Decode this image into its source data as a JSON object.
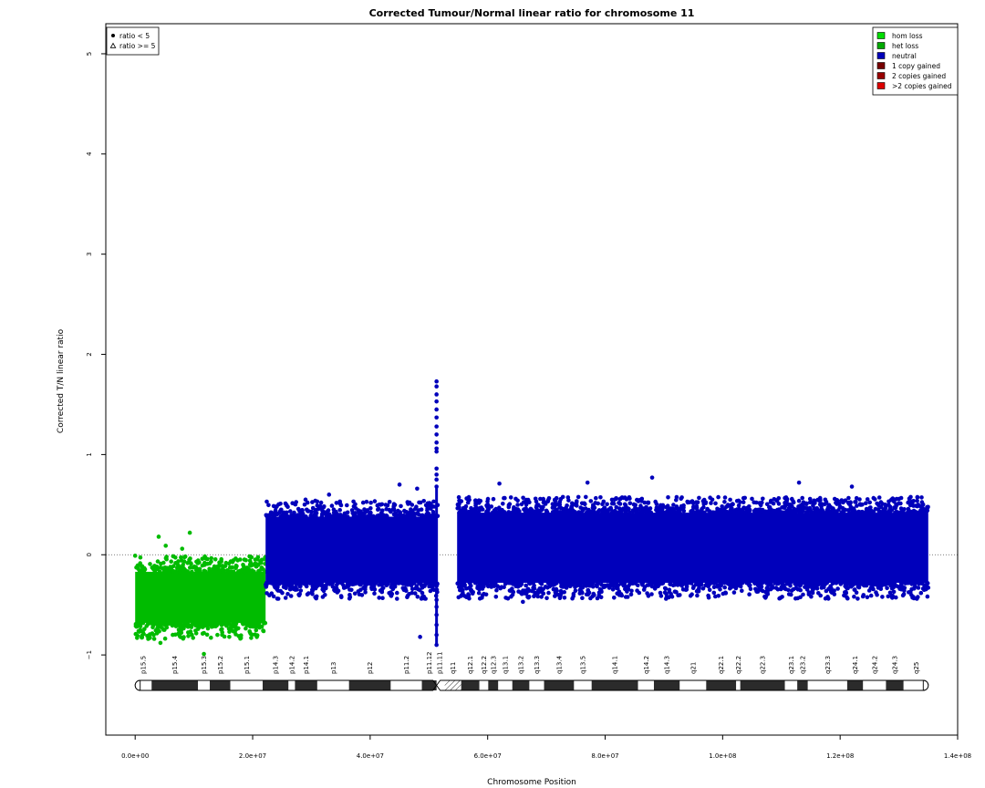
{
  "chart_data": {
    "type": "scatter",
    "title": "Corrected Tumour/Normal linear ratio for chromosome  11",
    "xlabel": "Chromosome Position",
    "ylabel": "Corrected T/N linear ratio",
    "xlim": [
      -5000000,
      140000000
    ],
    "ylim": [
      -1.8,
      5.3
    ],
    "x_ticks": [
      0,
      20000000,
      40000000,
      60000000,
      80000000,
      100000000,
      120000000,
      140000000
    ],
    "x_tick_labels": [
      "0.0e+00",
      "2.0e+07",
      "4.0e+07",
      "6.0e+07",
      "8.0e+07",
      "1.0e+08",
      "1.2e+08",
      "1.4e+08"
    ],
    "y_ticks": [
      -1,
      0,
      1,
      2,
      3,
      4,
      5
    ],
    "y_tick_labels": [
      "−1",
      "0",
      "1",
      "2",
      "3",
      "4",
      "5"
    ],
    "reference_line_y": 0,
    "grid": false,
    "segments": [
      {
        "state": "het loss",
        "color": "#00BB00",
        "x_start": 0,
        "x_end": 22200000,
        "mean": -0.47,
        "band_low": -0.68,
        "band_high": -0.17
      },
      {
        "state": "neutral",
        "color": "#0000BB",
        "x_start": 22200000,
        "x_end": 51500000,
        "mean": 0.05,
        "band_low": -0.28,
        "band_high": 0.38
      },
      {
        "state": "neutral",
        "color": "#0000BB",
        "x_start": 54800000,
        "x_end": 135000000,
        "mean": 0.05,
        "band_low": -0.28,
        "band_high": 0.42
      }
    ],
    "centromere_spike": {
      "x": 51300000,
      "y_values": [
        1.73,
        1.68,
        1.6,
        1.53,
        1.45,
        1.37,
        1.28,
        1.2,
        1.12,
        1.06,
        1.03,
        0.86,
        0.8,
        0.75,
        0.68,
        -0.45,
        -0.52,
        -0.6,
        -0.7,
        -0.8,
        -0.9
      ]
    },
    "outliers": [
      {
        "x": 0,
        "y": -0.01,
        "state": "het loss"
      },
      {
        "x": 4000000,
        "y": 0.18,
        "state": "het loss"
      },
      {
        "x": 5200000,
        "y": 0.09,
        "state": "het loss"
      },
      {
        "x": 6000000,
        "y": -0.2,
        "state": "het loss"
      },
      {
        "x": 8000000,
        "y": 0.06,
        "state": "het loss"
      },
      {
        "x": 9300000,
        "y": 0.22,
        "state": "het loss"
      },
      {
        "x": 4300000,
        "y": -0.88,
        "state": "het loss"
      },
      {
        "x": 11700000,
        "y": -0.99,
        "state": "het loss"
      },
      {
        "x": 14000000,
        "y": -0.8,
        "state": "het loss"
      },
      {
        "x": 29000000,
        "y": 0.55,
        "state": "neutral"
      },
      {
        "x": 33000000,
        "y": 0.6,
        "state": "neutral"
      },
      {
        "x": 45000000,
        "y": 0.7,
        "state": "neutral"
      },
      {
        "x": 48000000,
        "y": 0.66,
        "state": "neutral"
      },
      {
        "x": 48500000,
        "y": -0.82,
        "state": "neutral"
      },
      {
        "x": 62000000,
        "y": 0.71,
        "state": "neutral"
      },
      {
        "x": 66000000,
        "y": -0.47,
        "state": "neutral"
      },
      {
        "x": 77000000,
        "y": 0.72,
        "state": "neutral"
      },
      {
        "x": 88000000,
        "y": 0.77,
        "state": "neutral"
      },
      {
        "x": 113000000,
        "y": 0.72,
        "state": "neutral"
      },
      {
        "x": 122000000,
        "y": 0.68,
        "state": "neutral"
      }
    ],
    "shape_legend": {
      "position": "top-left",
      "entries": [
        {
          "symbol": "filled-circle",
          "label": "ratio < 5"
        },
        {
          "symbol": "open-triangle",
          "label": "ratio >= 5"
        }
      ]
    },
    "color_legend": {
      "position": "top-right",
      "entries": [
        {
          "label": "hom loss",
          "color": "#00DD00"
        },
        {
          "label": "het loss",
          "color": "#00AA00"
        },
        {
          "label": "neutral",
          "color": "#0000BB"
        },
        {
          "label": "1 copy gained",
          "color": "#770000"
        },
        {
          "label": "2 copies gained",
          "color": "#990000"
        },
        {
          "label": ">2 copies gained",
          "color": "#DD0000"
        }
      ]
    },
    "ideogram": {
      "centromere": 51300000,
      "bands": [
        {
          "label": "p15.5",
          "start": 0,
          "end": 2800000,
          "stain": "gneg"
        },
        {
          "label": "p15.4",
          "start": 2800000,
          "end": 10700000,
          "stain": "gpos"
        },
        {
          "label": "p15.3",
          "start": 10700000,
          "end": 12700000,
          "stain": "gneg"
        },
        {
          "label": "p15.2",
          "start": 12700000,
          "end": 16200000,
          "stain": "gpos"
        },
        {
          "label": "p15.1",
          "start": 16200000,
          "end": 21700000,
          "stain": "gneg"
        },
        {
          "label": "p14.3",
          "start": 21700000,
          "end": 26100000,
          "stain": "gpos"
        },
        {
          "label": "p14.2",
          "start": 26100000,
          "end": 27200000,
          "stain": "gneg"
        },
        {
          "label": "p14.1",
          "start": 27200000,
          "end": 31000000,
          "stain": "gpos"
        },
        {
          "label": "p13",
          "start": 31000000,
          "end": 36400000,
          "stain": "gneg"
        },
        {
          "label": "p12",
          "start": 36400000,
          "end": 43500000,
          "stain": "gpos"
        },
        {
          "label": "p11.2",
          "start": 43500000,
          "end": 48800000,
          "stain": "gneg"
        },
        {
          "label": "p11.12",
          "start": 48800000,
          "end": 51300000,
          "stain": "gpos"
        },
        {
          "label": "p11.11",
          "start": 51300000,
          "end": 52700000,
          "stain": "acen"
        },
        {
          "label": "q11",
          "start": 52700000,
          "end": 55500000,
          "stain": "gvar"
        },
        {
          "label": "q12.1",
          "start": 55500000,
          "end": 58600000,
          "stain": "gpos"
        },
        {
          "label": "q12.2",
          "start": 58600000,
          "end": 60100000,
          "stain": "gneg"
        },
        {
          "label": "q12.3",
          "start": 60100000,
          "end": 61800000,
          "stain": "gpos"
        },
        {
          "label": "q13.1",
          "start": 61800000,
          "end": 64200000,
          "stain": "gneg"
        },
        {
          "label": "q13.2",
          "start": 64200000,
          "end": 67100000,
          "stain": "gpos"
        },
        {
          "label": "q13.3",
          "start": 67100000,
          "end": 69600000,
          "stain": "gneg"
        },
        {
          "label": "q13.4",
          "start": 69600000,
          "end": 74700000,
          "stain": "gpos"
        },
        {
          "label": "q13.5",
          "start": 74700000,
          "end": 77700000,
          "stain": "gneg"
        },
        {
          "label": "q14.1",
          "start": 77700000,
          "end": 85600000,
          "stain": "gpos"
        },
        {
          "label": "q14.2",
          "start": 85600000,
          "end": 88300000,
          "stain": "gneg"
        },
        {
          "label": "q14.3",
          "start": 88300000,
          "end": 92700000,
          "stain": "gpos"
        },
        {
          "label": "q21",
          "start": 92700000,
          "end": 97200000,
          "stain": "gneg"
        },
        {
          "label": "q22.1",
          "start": 97200000,
          "end": 102300000,
          "stain": "gpos"
        },
        {
          "label": "q22.2",
          "start": 102300000,
          "end": 103000000,
          "stain": "gneg"
        },
        {
          "label": "q22.3",
          "start": 103000000,
          "end": 110600000,
          "stain": "gpos"
        },
        {
          "label": "q23.1",
          "start": 110600000,
          "end": 112700000,
          "stain": "gneg"
        },
        {
          "label": "q23.2",
          "start": 112700000,
          "end": 114500000,
          "stain": "gpos"
        },
        {
          "label": "q23.3",
          "start": 114500000,
          "end": 121200000,
          "stain": "gneg"
        },
        {
          "label": "q24.1",
          "start": 121200000,
          "end": 123900000,
          "stain": "gpos"
        },
        {
          "label": "q24.2",
          "start": 123900000,
          "end": 127800000,
          "stain": "gneg"
        },
        {
          "label": "q24.3",
          "start": 127800000,
          "end": 130800000,
          "stain": "gpos"
        },
        {
          "label": "q25",
          "start": 130800000,
          "end": 135000000,
          "stain": "gneg"
        }
      ]
    }
  }
}
